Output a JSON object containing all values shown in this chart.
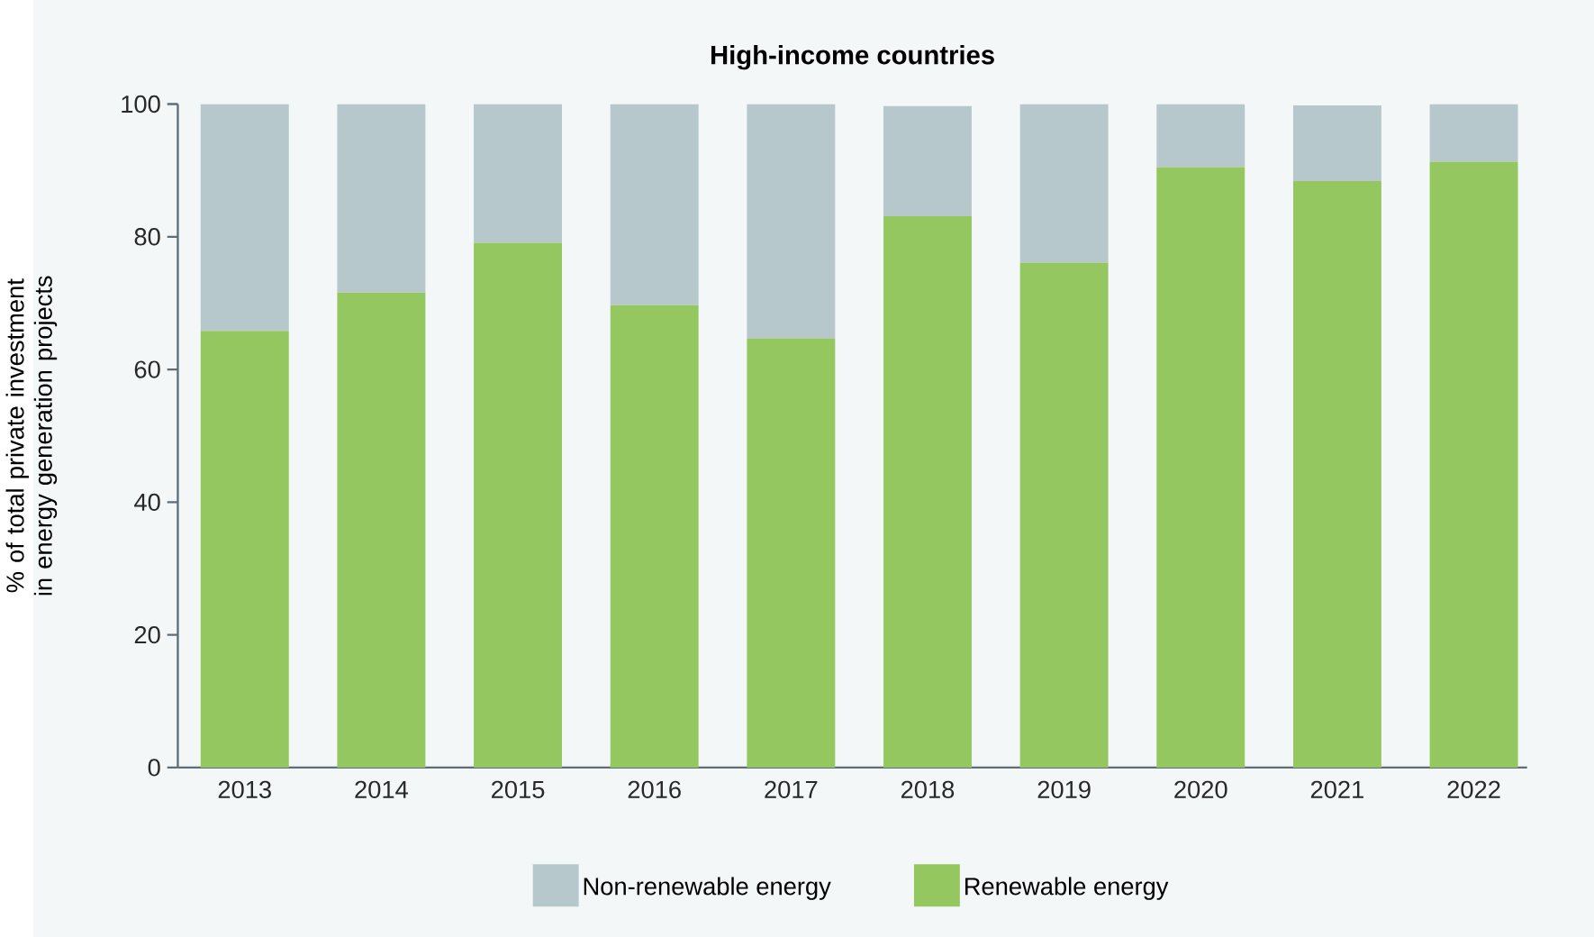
{
  "chart_data": {
    "type": "bar",
    "stacked": true,
    "title": "High-income countries",
    "ylabel": "% of total private investment in energy generation projects",
    "categories": [
      "2013",
      "2014",
      "2015",
      "2016",
      "2017",
      "2018",
      "2019",
      "2020",
      "2021",
      "2022"
    ],
    "series": [
      {
        "name": "Renewable energy",
        "color": "#94c760",
        "values": [
          65.8,
          71.6,
          79.1,
          69.7,
          64.7,
          83.1,
          76.1,
          90.5,
          88.4,
          91.3
        ]
      },
      {
        "name": "Non-renewable energy",
        "color": "#b6c8cc",
        "values": [
          34.2,
          28.4,
          20.9,
          30.3,
          35.3,
          16.6,
          23.9,
          9.5,
          11.4,
          8.7
        ]
      }
    ],
    "ylim": [
      0,
      100
    ],
    "yticks": [
      0,
      20,
      40,
      60,
      80,
      100
    ],
    "grid": false,
    "legend": "bottom"
  }
}
